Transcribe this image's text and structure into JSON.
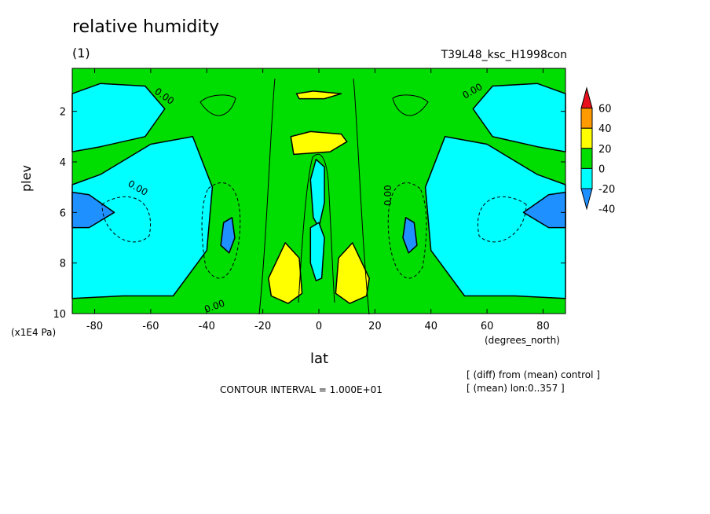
{
  "chart_data": {
    "type": "contour",
    "title": "relative humidity",
    "subtitle": "(1)",
    "run_name": "T39L48_ksc_H1998con",
    "xlabel": "lat",
    "xunit": "(degrees_north)",
    "ylabel": "plev",
    "yunit": "(x1E4 Pa)",
    "xlim": [
      -88,
      88
    ],
    "ylim": [
      10,
      0.3
    ],
    "xticks": [
      -80,
      -60,
      -40,
      -20,
      0,
      20,
      40,
      60,
      80
    ],
    "yticks": [
      2,
      4,
      6,
      8,
      10
    ],
    "contour_interval": "CONTOUR INTERVAL = 1.000E+01",
    "contour_labels": [
      "0.00",
      "0.00",
      "0.00",
      "0.00",
      "0.00"
    ],
    "notes": [
      "[ (diff) from (mean) control ]",
      "[ (mean) lon:0..357 ]"
    ],
    "colorbar": {
      "levels": [
        60,
        40,
        20,
        0,
        -20,
        -40
      ],
      "colors": [
        "#e8101c",
        "#ff9a00",
        "#ffff00",
        "#00dd00",
        "#00ffff",
        "#1e90ff"
      ]
    },
    "regions": [
      {
        "level": "-20..0",
        "color": "#00ffff",
        "polygons": [
          [
            [
              -88,
              1.3
            ],
            [
              -78,
              0.9
            ],
            [
              -62,
              1.0
            ],
            [
              -55,
              1.9
            ],
            [
              -62,
              3.0
            ],
            [
              -78,
              3.4
            ],
            [
              -88,
              3.6
            ]
          ],
          [
            [
              -88,
              4.9
            ],
            [
              -78,
              4.5
            ],
            [
              -60,
              3.3
            ],
            [
              -45,
              3.0
            ],
            [
              -38,
              5.0
            ],
            [
              -40,
              7.5
            ],
            [
              -52,
              9.3
            ],
            [
              -70,
              9.3
            ],
            [
              -88,
              9.4
            ]
          ],
          [
            [
              88,
              1.3
            ],
            [
              78,
              0.9
            ],
            [
              62,
              1.0
            ],
            [
              55,
              1.9
            ],
            [
              62,
              3.0
            ],
            [
              78,
              3.4
            ],
            [
              88,
              3.6
            ]
          ],
          [
            [
              88,
              4.9
            ],
            [
              78,
              4.5
            ],
            [
              60,
              3.3
            ],
            [
              45,
              3.0
            ],
            [
              38,
              5.0
            ],
            [
              40,
              7.5
            ],
            [
              52,
              9.3
            ],
            [
              70,
              9.3
            ],
            [
              88,
              9.4
            ]
          ],
          [
            [
              -3,
              4.7
            ],
            [
              -1,
              3.9
            ],
            [
              2,
              4.2
            ],
            [
              2,
              5.6
            ],
            [
              0,
              6.6
            ],
            [
              -2,
              6.2
            ]
          ],
          [
            [
              -3,
              6.6
            ],
            [
              0,
              6.4
            ],
            [
              2,
              7.0
            ],
            [
              1,
              8.6
            ],
            [
              -1,
              8.7
            ],
            [
              -3,
              8.0
            ]
          ]
        ]
      },
      {
        "level": "-40..-20",
        "color": "#1e90ff",
        "polygons": [
          [
            [
              -88,
              5.2
            ],
            [
              -82,
              5.3
            ],
            [
              -73,
              6.0
            ],
            [
              -82,
              6.6
            ],
            [
              -88,
              6.6
            ]
          ],
          [
            [
              88,
              5.2
            ],
            [
              82,
              5.3
            ],
            [
              73,
              6.0
            ],
            [
              82,
              6.6
            ],
            [
              88,
              6.6
            ]
          ],
          [
            [
              -34,
              6.4
            ],
            [
              -31,
              6.2
            ],
            [
              -30,
              7.0
            ],
            [
              -32,
              7.6
            ],
            [
              -35,
              7.3
            ]
          ],
          [
            [
              34,
              6.4
            ],
            [
              31,
              6.2
            ],
            [
              30,
              7.0
            ],
            [
              32,
              7.6
            ],
            [
              35,
              7.3
            ]
          ]
        ]
      },
      {
        "level": "0..20",
        "color": "#ffff00",
        "polygons": [
          [
            [
              -18,
              8.6
            ],
            [
              -12,
              7.2
            ],
            [
              -7,
              7.8
            ],
            [
              -6,
              9.2
            ],
            [
              -11,
              9.6
            ],
            [
              -17,
              9.3
            ]
          ],
          [
            [
              18,
              8.6
            ],
            [
              12,
              7.2
            ],
            [
              7,
              7.8
            ],
            [
              6,
              9.2
            ],
            [
              11,
              9.6
            ],
            [
              17,
              9.3
            ]
          ],
          [
            [
              -10,
              3.0
            ],
            [
              -3,
              2.8
            ],
            [
              8,
              2.9
            ],
            [
              10,
              3.2
            ],
            [
              4,
              3.6
            ],
            [
              -9,
              3.7
            ]
          ],
          [
            [
              -8,
              1.3
            ],
            [
              -2,
              1.2
            ],
            [
              8,
              1.3
            ],
            [
              2,
              1.5
            ],
            [
              -7,
              1.5
            ]
          ]
        ]
      }
    ]
  }
}
